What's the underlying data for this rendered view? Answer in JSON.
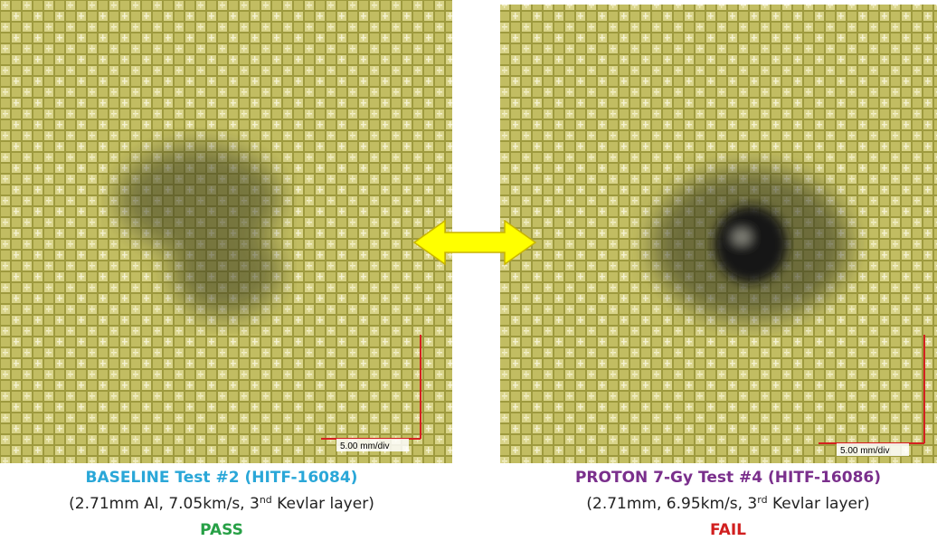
{
  "panels": [
    {
      "scale_label": "5.00 mm/div",
      "title": "BASELINE Test #2 (HITF-16084)",
      "detail": {
        "before": "(2.71mm Al, 7.05km/s, 3",
        "superscript": "nd",
        "after": " Kevlar layer)"
      },
      "result": "PASS"
    },
    {
      "scale_label": "5.00 mm/div",
      "title": "PROTON 7-Gy Test #4 (HITF-16086)",
      "detail": {
        "before": "(2.71mm, 6.95km/s, 3",
        "superscript": "rd",
        "after": " Kevlar layer)"
      },
      "result": "FAIL"
    }
  ]
}
